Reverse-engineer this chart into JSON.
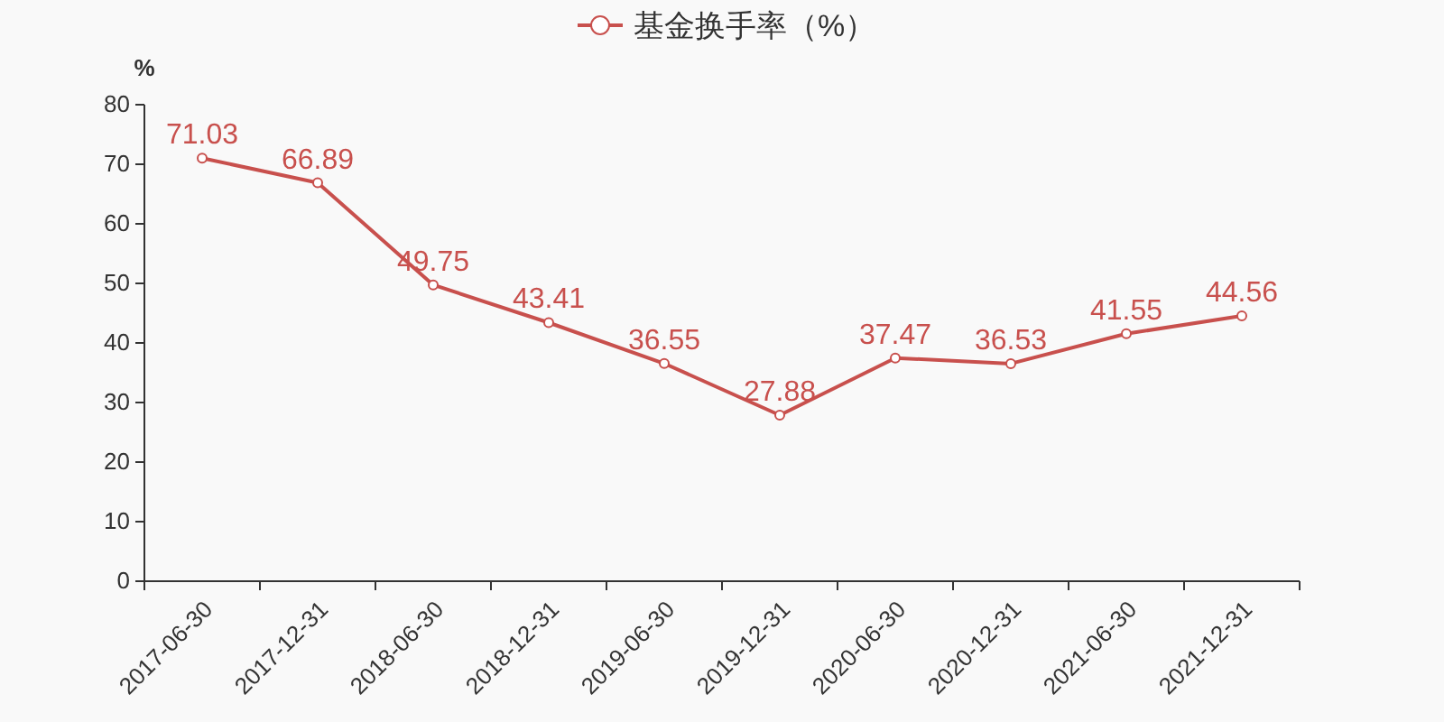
{
  "chart_data": {
    "type": "line",
    "ylabel": "%",
    "legend": "top",
    "marker": "circle",
    "data_labels": true,
    "categories": [
      "2017-06-30",
      "2017-12-31",
      "2018-06-30",
      "2018-12-31",
      "2019-06-30",
      "2019-12-31",
      "2020-06-30",
      "2020-12-31",
      "2021-06-30",
      "2021-12-31"
    ],
    "series": [
      {
        "name": "基金换手率（%）",
        "color": "#c8504d",
        "values": [
          71.03,
          66.89,
          49.75,
          43.41,
          36.55,
          27.88,
          37.47,
          36.53,
          41.55,
          44.56
        ]
      }
    ],
    "ylim": [
      0,
      80
    ],
    "yticks": [
      0,
      10,
      20,
      30,
      40,
      50,
      60,
      70,
      80
    ]
  }
}
